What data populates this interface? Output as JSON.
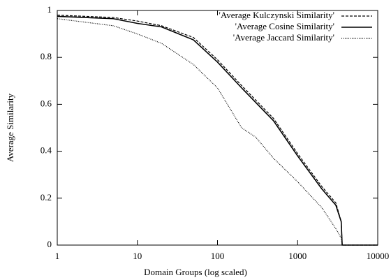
{
  "chart_data": {
    "type": "line",
    "xlabel": "Domain Groups (log scaled)",
    "ylabel": "Average Similarity",
    "xscale": "log",
    "xlim": [
      1,
      10000
    ],
    "xticks": [
      1,
      10,
      100,
      1000,
      10000
    ],
    "ylim": [
      0,
      1
    ],
    "yticks": [
      0,
      0.2,
      0.4,
      0.6,
      0.8,
      1
    ],
    "legend": "upper right",
    "series": [
      {
        "name": "'Average Kulczynski Similarity'",
        "color": "#000000",
        "dash": "4,2",
        "x": [
          1,
          5,
          10,
          20,
          50,
          100,
          200,
          500,
          1000,
          2000,
          3000,
          3500,
          3600,
          10000
        ],
        "values": [
          0.98,
          0.97,
          0.955,
          0.935,
          0.885,
          0.79,
          0.68,
          0.54,
          0.39,
          0.25,
          0.18,
          0.1,
          0,
          0
        ]
      },
      {
        "name": "'Average Cosine Similarity'",
        "color": "#000000",
        "dash": "none",
        "x": [
          1,
          5,
          10,
          20,
          50,
          100,
          200,
          500,
          1000,
          2000,
          3000,
          3500,
          3600,
          10000
        ],
        "values": [
          0.975,
          0.965,
          0.945,
          0.93,
          0.875,
          0.78,
          0.67,
          0.53,
          0.38,
          0.24,
          0.17,
          0.1,
          0,
          0
        ]
      },
      {
        "name": "'Average Jaccard Similarity'",
        "color": "#000000",
        "dash": "1,1.5",
        "x": [
          1,
          5,
          10,
          20,
          50,
          100,
          200,
          300,
          500,
          1000,
          2000,
          3000,
          3500,
          3600,
          10000
        ],
        "values": [
          0.965,
          0.935,
          0.9,
          0.86,
          0.77,
          0.67,
          0.5,
          0.46,
          0.37,
          0.27,
          0.16,
          0.07,
          0.03,
          0,
          0
        ]
      }
    ]
  }
}
